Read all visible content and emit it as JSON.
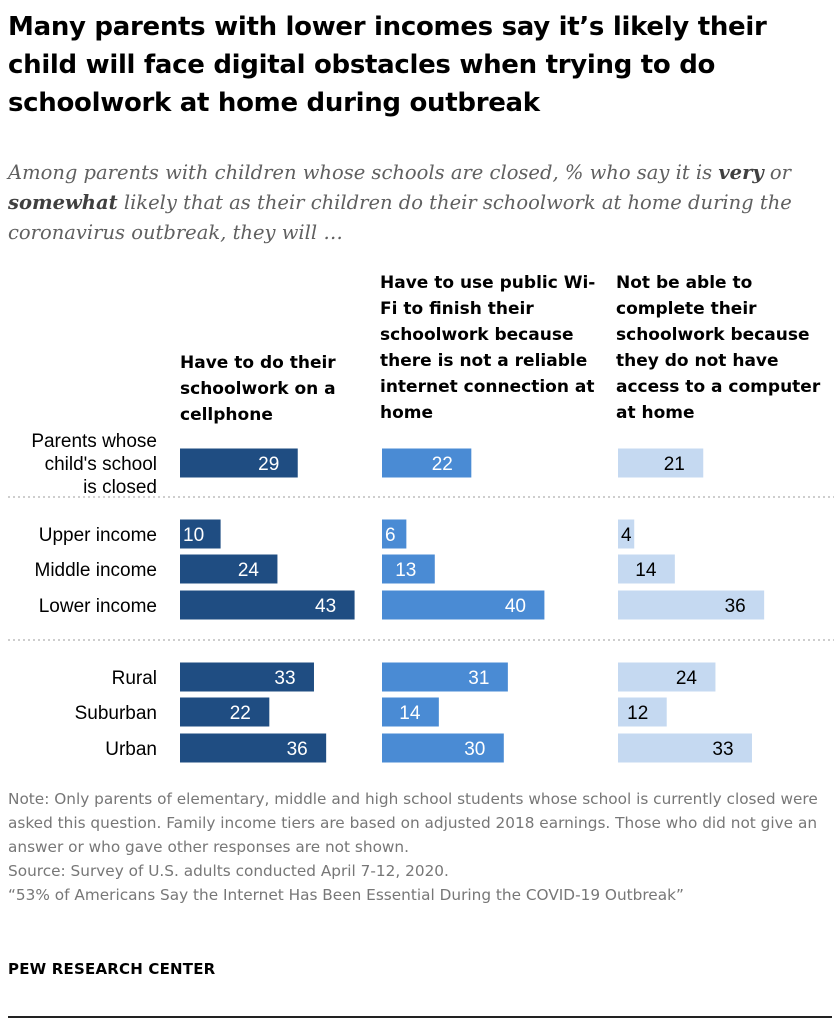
{
  "title": "Many parents with lower incomes say it’s likely their child will face digital obstacles when trying to do schoolwork at home during outbreak",
  "subtitle": {
    "part1": "Among parents with children whose schools are closed, % who say it is ",
    "very": "very",
    "part2": " or ",
    "somewhat": "somewhat",
    "part3": " likely that as their children do their schoolwork at home during the coronavirus outbreak, they will …"
  },
  "chart_data": {
    "type": "bar",
    "orientation": "horizontal",
    "categories": [
      "Parents whose child's school is closed",
      "Upper income",
      "Middle income",
      "Lower income",
      "Rural",
      "Suburban",
      "Urban"
    ],
    "groups": [
      [
        0
      ],
      [
        1,
        2,
        3
      ],
      [
        4,
        5,
        6
      ]
    ],
    "series": [
      {
        "name": "Have to do their schoolwork on a cellphone",
        "color": "#1f4d82",
        "label_color": "#ffffff",
        "values": [
          29,
          10,
          24,
          43,
          33,
          22,
          36
        ]
      },
      {
        "name": "Have to use public Wi-Fi to finish their schoolwork because there is not a reliable internet connection at home",
        "color": "#4a8bd4",
        "label_color": "#ffffff",
        "values": [
          22,
          6,
          13,
          40,
          31,
          14,
          30
        ]
      },
      {
        "name": "Not be able to complete their schoolwork because they do not have access to a computer at home",
        "color": "#c5d9f1",
        "label_color": "#000000",
        "values": [
          21,
          4,
          14,
          36,
          24,
          12,
          33
        ]
      }
    ],
    "grid": false,
    "legend": "column-headers"
  },
  "notes": {
    "note": "Note: Only parents of elementary, middle and high school students whose school is currently closed were asked this question. Family income tiers are based on adjusted 2018 earnings. Those who did not give an answer or who gave other responses are not shown.",
    "source": "Source: Survey of U.S. adults conducted April 7-12, 2020.",
    "report": "“53% of Americans Say the Internet Has Been Essential During the COVID-19 Outbreak”"
  },
  "logo": "PEW RESEARCH CENTER"
}
